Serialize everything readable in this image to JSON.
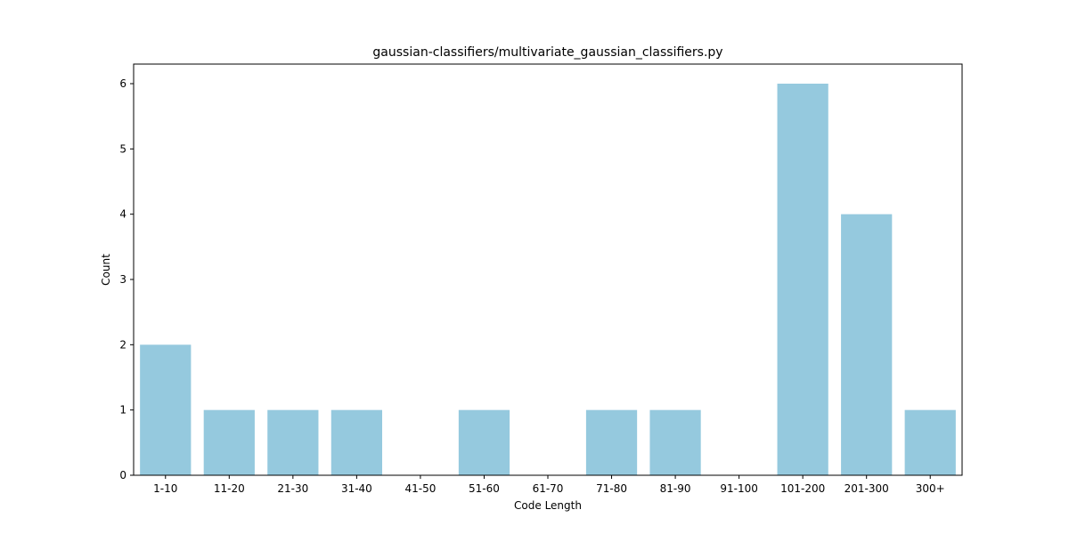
{
  "chart_data": {
    "type": "bar",
    "title": "gaussian-classifiers/multivariate_gaussian_classifiers.py",
    "xlabel": "Code Length",
    "ylabel": "Count",
    "categories": [
      "1-10",
      "11-20",
      "21-30",
      "31-40",
      "41-50",
      "51-60",
      "61-70",
      "71-80",
      "81-90",
      "91-100",
      "101-200",
      "201-300",
      "300+"
    ],
    "values": [
      2,
      1,
      1,
      1,
      0,
      1,
      0,
      1,
      1,
      0,
      6,
      4,
      1
    ],
    "yticks": [
      0,
      1,
      2,
      3,
      4,
      5,
      6
    ],
    "ylim": [
      0,
      6.3
    ],
    "bar_color": "#95c9de",
    "grid": false,
    "legend": "none"
  }
}
